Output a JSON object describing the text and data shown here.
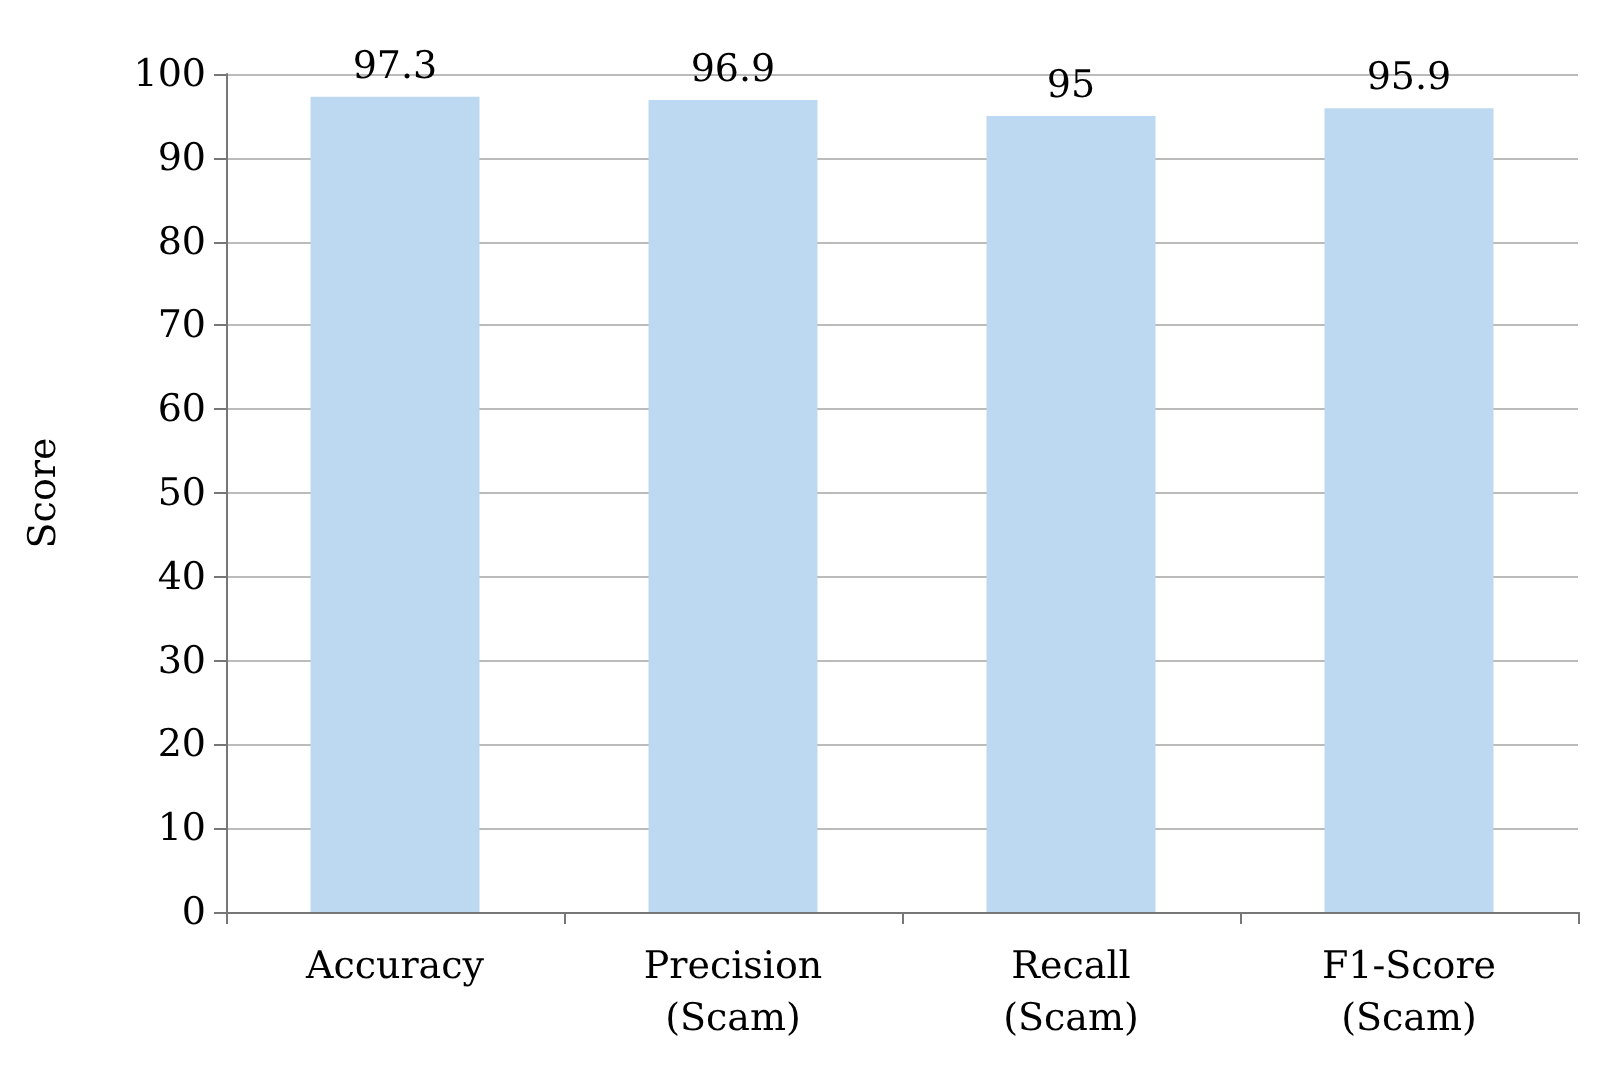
{
  "chart_data": {
    "type": "bar",
    "ylabel": "Score",
    "categories": [
      "Accuracy",
      "Precision (Scam)",
      "Recall (Scam)",
      "F1-Score (Scam)"
    ],
    "values": [
      97.3,
      96.9,
      95,
      95.9
    ],
    "color": "#bdd9f2",
    "ylim": [
      0,
      100
    ],
    "yticks": [
      0,
      10,
      20,
      30,
      40,
      50,
      60,
      70,
      80,
      90,
      100
    ],
    "grid": "y",
    "data_labels": true
  }
}
